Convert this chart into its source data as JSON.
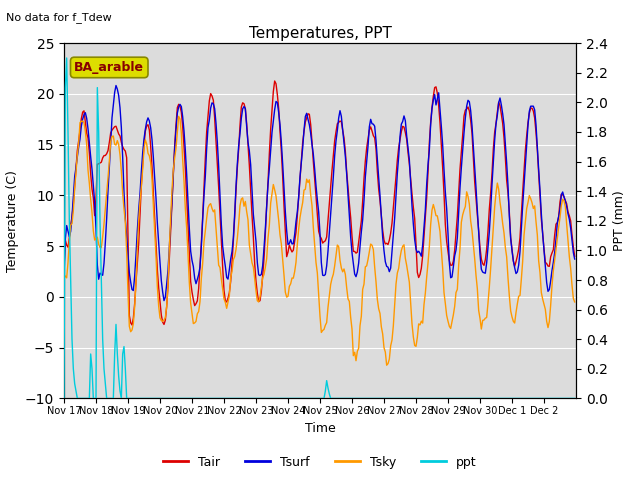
{
  "title": "Temperatures, PPT",
  "subtitle": "No data for f_Tdew",
  "legend_label": "BA_arable",
  "xlabel": "Time",
  "ylabel_left": "Temperature (C)",
  "ylabel_right": "PPT (mm)",
  "ylim_left": [
    -10,
    25
  ],
  "ylim_right": [
    0.0,
    2.4
  ],
  "yticks_left": [
    -10,
    -5,
    0,
    5,
    10,
    15,
    20,
    25
  ],
  "yticks_right": [
    0.0,
    0.2,
    0.4,
    0.6,
    0.8,
    1.0,
    1.2,
    1.4,
    1.6,
    1.8,
    2.0,
    2.2,
    2.4
  ],
  "xtick_labels": [
    "Nov 17",
    "Nov 18",
    "Nov 19",
    "Nov 20",
    "Nov 21",
    "Nov 22",
    "Nov 23",
    "Nov 24",
    "Nov 25",
    "Nov 26",
    "Nov 27",
    "Nov 28",
    "Nov 29",
    "Nov 30",
    "Dec 1",
    "Dec 2"
  ],
  "colors": {
    "Tair": "#dd0000",
    "Tsurf": "#0000dd",
    "Tsky": "#ff9900",
    "ppt": "#00ccdd",
    "background_inner": "#dcdcdc",
    "background_outer": "#f0f0f0"
  },
  "grid_color": "#ffffff",
  "line_width": 1.0,
  "n_days": 16,
  "hours_per_day": 24
}
